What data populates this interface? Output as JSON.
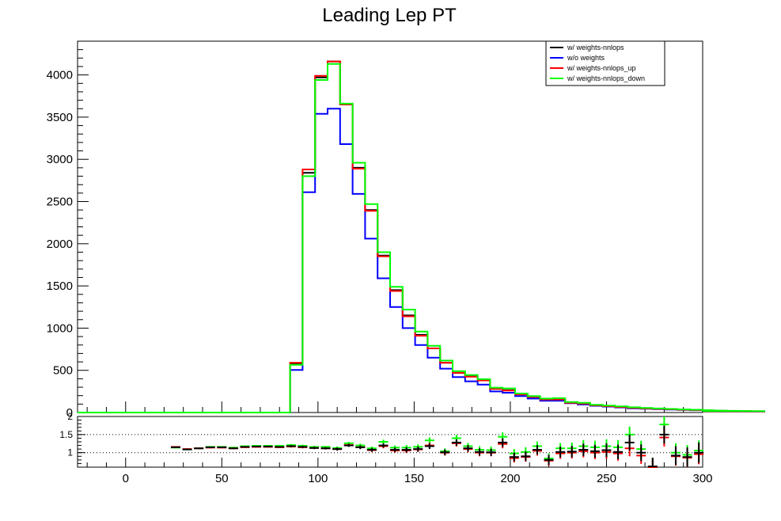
{
  "chart_data": [
    {
      "type": "histogram",
      "title": "Leading Lep PT",
      "xlim": [
        -25,
        300
      ],
      "ylim": [
        0,
        4400
      ],
      "x_ticks": [
        0,
        50,
        100,
        150,
        200,
        250,
        300
      ],
      "y_ticks": [
        0,
        500,
        1000,
        1500,
        2000,
        2500,
        3000,
        3500,
        4000
      ],
      "bin_width": 6.5,
      "bin_start": -25,
      "legend_position": "top-right",
      "series": [
        {
          "name": "w/ weights-nnlops",
          "color": "#000000",
          "values": [
            0,
            0,
            0,
            0,
            0,
            0,
            0,
            0,
            0,
            0,
            0,
            0,
            0,
            0,
            0,
            0,
            0,
            580,
            2840,
            3970,
            4160,
            3650,
            2900,
            2400,
            1860,
            1450,
            1150,
            920,
            760,
            590,
            470,
            430,
            380,
            285,
            265,
            215,
            185,
            160,
            160,
            120,
            108,
            86,
            78,
            68,
            58,
            50,
            45,
            39,
            34,
            30,
            27,
            24,
            20,
            18,
            16,
            14
          ]
        },
        {
          "name": "w/o weights",
          "color": "#0000ff",
          "values": [
            0,
            0,
            0,
            0,
            0,
            0,
            0,
            0,
            0,
            0,
            0,
            0,
            0,
            0,
            0,
            0,
            0,
            505,
            2610,
            3540,
            3600,
            3180,
            2590,
            2060,
            1590,
            1250,
            1000,
            800,
            650,
            520,
            420,
            370,
            330,
            250,
            235,
            195,
            165,
            140,
            140,
            110,
            95,
            80,
            70,
            60,
            50,
            45,
            40,
            35,
            30,
            27,
            24,
            21,
            18,
            16,
            14,
            12
          ]
        },
        {
          "name": "w/ weights-nnlops_up",
          "color": "#ff0000",
          "values": [
            0,
            0,
            0,
            0,
            0,
            0,
            0,
            0,
            0,
            0,
            0,
            0,
            0,
            0,
            0,
            0,
            0,
            590,
            2880,
            3990,
            4160,
            3650,
            2890,
            2390,
            1850,
            1440,
            1140,
            910,
            760,
            590,
            470,
            425,
            380,
            280,
            260,
            215,
            185,
            155,
            155,
            115,
            105,
            85,
            75,
            65,
            55,
            48,
            43,
            38,
            33,
            29,
            26,
            23,
            19,
            17,
            15,
            13
          ]
        },
        {
          "name": "w/ weights-nnlops_down",
          "color": "#00ff00",
          "values": [
            0,
            0,
            0,
            0,
            0,
            0,
            0,
            0,
            0,
            0,
            0,
            0,
            0,
            0,
            0,
            0,
            0,
            565,
            2800,
            3940,
            4130,
            3660,
            2960,
            2470,
            1900,
            1490,
            1220,
            960,
            790,
            615,
            490,
            445,
            395,
            295,
            285,
            225,
            195,
            165,
            170,
            125,
            115,
            92,
            82,
            72,
            62,
            54,
            48,
            42,
            37,
            33,
            29,
            26,
            22,
            20,
            18,
            16
          ]
        }
      ]
    },
    {
      "type": "ratio",
      "xlim": [
        -25,
        300
      ],
      "ylim": [
        0.6,
        2
      ],
      "y_ticks": [
        1,
        1.5,
        2
      ],
      "y_tick_labels": [
        "1",
        "1.5",
        "2"
      ],
      "reference_lines": [
        1,
        1.5
      ],
      "points": {
        "x": [
          26,
          32,
          38,
          44,
          50,
          56,
          62,
          68,
          74,
          80,
          86,
          92,
          98,
          104,
          110,
          116,
          122,
          128,
          134,
          140,
          146,
          152,
          158,
          166,
          172,
          178,
          184,
          190,
          196,
          202,
          208,
          214,
          220,
          226,
          232,
          238,
          244,
          250,
          256,
          262,
          268,
          274,
          280,
          286,
          292,
          298
        ],
        "black": [
          1.15,
          1.09,
          1.12,
          1.15,
          1.15,
          1.12,
          1.16,
          1.17,
          1.17,
          1.16,
          1.18,
          1.16,
          1.13,
          1.12,
          1.1,
          1.2,
          1.15,
          1.08,
          1.2,
          1.08,
          1.08,
          1.1,
          1.18,
          1.01,
          1.28,
          1.12,
          1.02,
          1.01,
          1.28,
          0.88,
          0.9,
          1.08,
          0.8,
          1.02,
          1.03,
          1.08,
          1.04,
          1.07,
          1.02,
          1.28,
          1.0,
          0.62,
          1.5,
          0.92,
          0.88,
          1.0
        ],
        "red": [
          1.16,
          1.1,
          1.12,
          1.14,
          1.14,
          1.12,
          1.15,
          1.16,
          1.16,
          1.15,
          1.17,
          1.15,
          1.13,
          1.12,
          1.1,
          1.21,
          1.15,
          1.07,
          1.18,
          1.06,
          1.06,
          1.09,
          1.2,
          1.0,
          1.26,
          1.1,
          1.0,
          1.0,
          1.24,
          0.85,
          0.88,
          1.05,
          0.78,
          0.98,
          1.0,
          1.04,
          1.0,
          1.02,
          0.98,
          1.12,
          0.92,
          0.6,
          1.42,
          0.9,
          0.86,
          0.96
        ],
        "green": [
          1.14,
          1.09,
          1.12,
          1.16,
          1.16,
          1.14,
          1.18,
          1.19,
          1.19,
          1.19,
          1.21,
          1.19,
          1.16,
          1.16,
          1.13,
          1.26,
          1.2,
          1.12,
          1.3,
          1.14,
          1.14,
          1.16,
          1.34,
          1.04,
          1.4,
          1.18,
          1.08,
          1.07,
          1.44,
          0.98,
          1.02,
          1.18,
          0.84,
          1.12,
          1.12,
          1.18,
          1.15,
          1.18,
          1.15,
          1.5,
          1.1,
          0.62,
          1.78,
          1.0,
          0.94,
          1.06
        ]
      },
      "error_halfwidth": [
        0.02,
        0.02,
        0.02,
        0.02,
        0.02,
        0.02,
        0.02,
        0.02,
        0.02,
        0.02,
        0.03,
        0.03,
        0.03,
        0.03,
        0.04,
        0.04,
        0.05,
        0.05,
        0.06,
        0.06,
        0.07,
        0.07,
        0.08,
        0.08,
        0.09,
        0.09,
        0.1,
        0.1,
        0.12,
        0.12,
        0.13,
        0.13,
        0.14,
        0.15,
        0.16,
        0.17,
        0.18,
        0.19,
        0.2,
        0.22,
        0.23,
        0.24,
        0.25,
        0.26,
        0.27,
        0.28
      ]
    }
  ]
}
